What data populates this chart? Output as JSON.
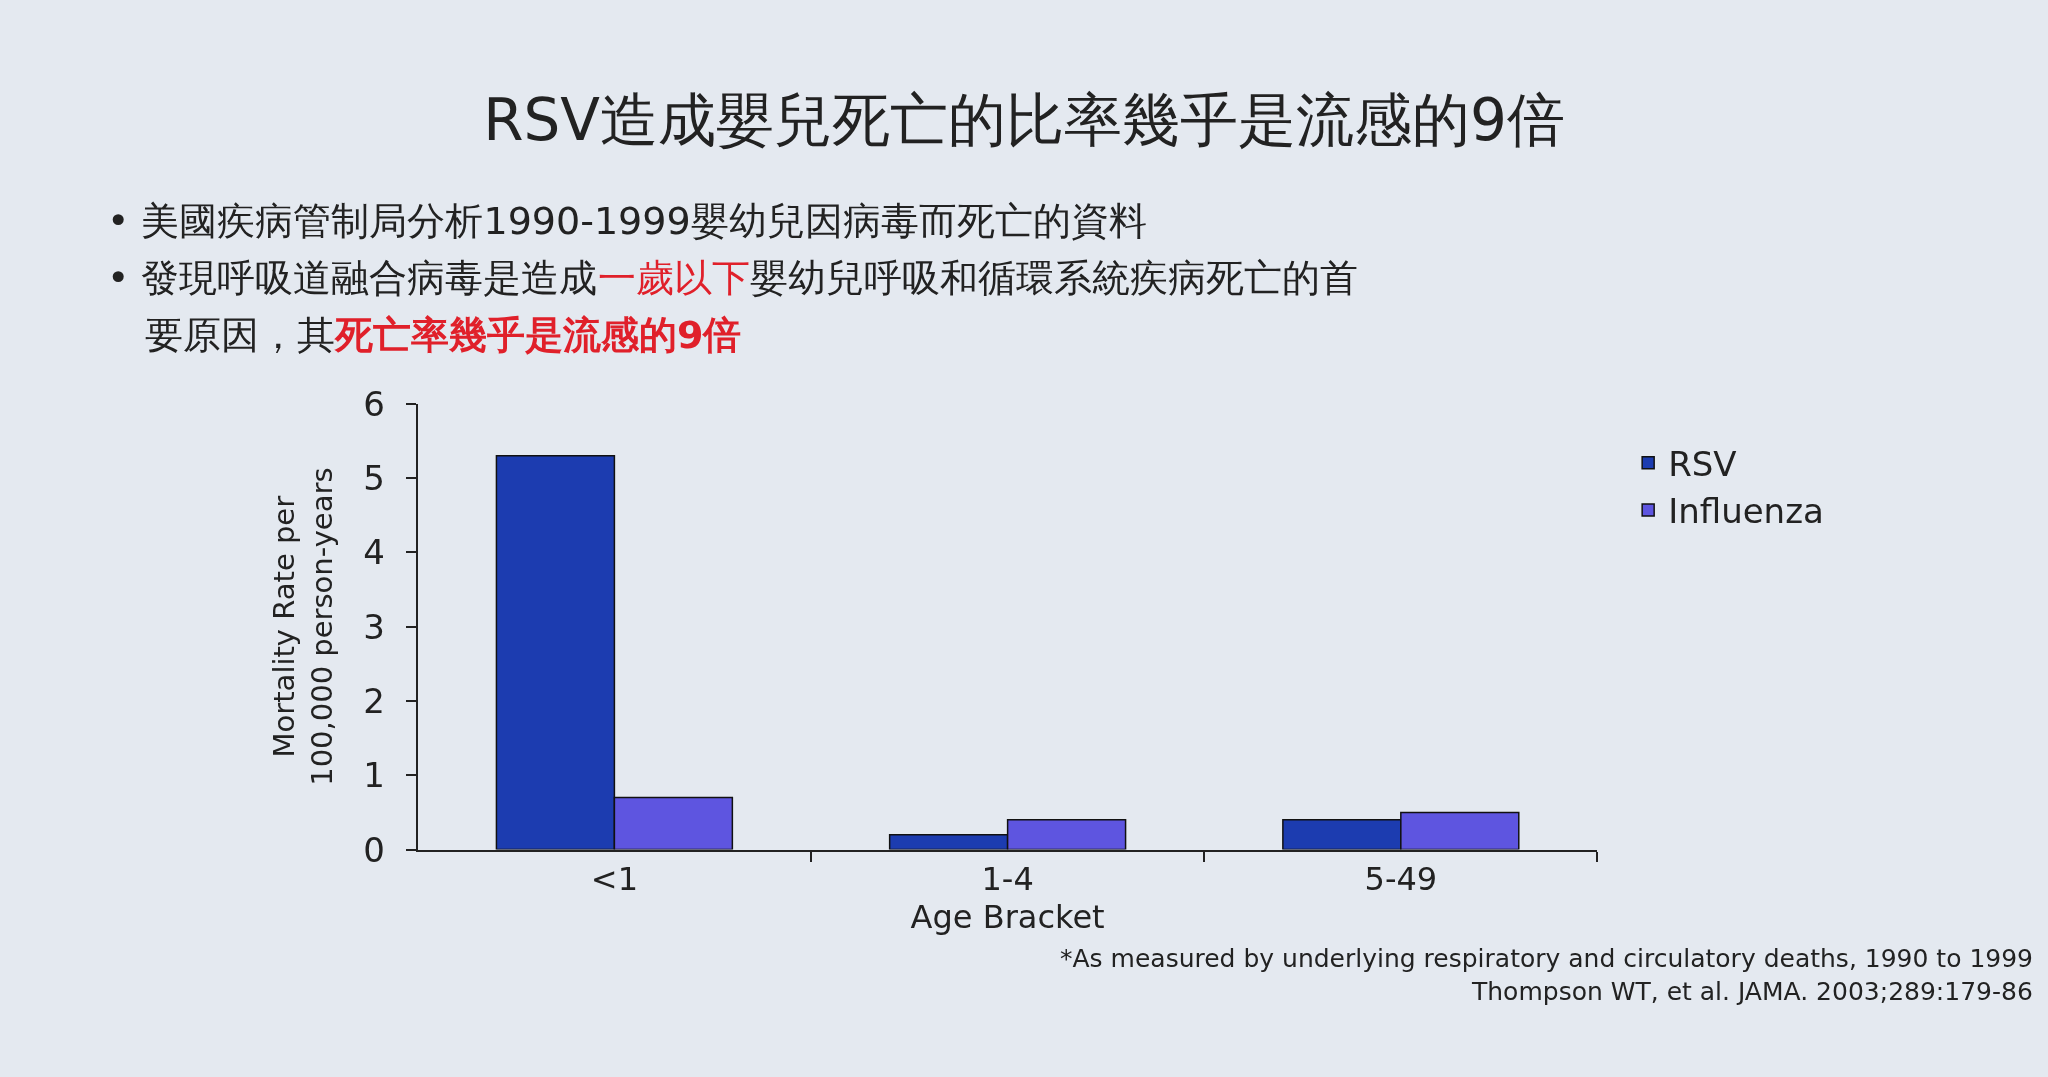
{
  "chart_data": {
    "type": "bar",
    "title": "RSV造成嬰兒死亡的比率幾乎是流感的9倍",
    "subtitle": "• 美國疾病管制局分析1990-1999嬰幼兒因病毒而死亡的資料",
    "annotations": [
      "• 發現呼吸道融合病毒是造成",
      "一歲以下",
      "嬰幼兒呼吸和循環系統疾病死亡的首",
      "要原因，其",
      "死亡率幾乎是流感的9倍",
      "*As measured by underlying respiratory and circulatory deaths, 1990 to 1999",
      "Thompson WT, et al. JAMA. 2003;289:179-86"
    ],
    "xlabel": "Age Bracket",
    "ylabel": "Mortality Rate per\n100,000 person-years",
    "categories": [
      "<1",
      "1-4",
      "5-49"
    ],
    "series": [
      {
        "name": "RSV",
        "color": "#1c3cb0",
        "values": [
          5.3,
          0.2,
          0.4
        ]
      },
      {
        "name": "Influenza",
        "color": "#5e55e0",
        "values": [
          0.7,
          0.4,
          0.5
        ]
      }
    ],
    "ylim": [
      0,
      6
    ],
    "yticks": [
      0,
      1,
      2,
      3,
      4,
      5,
      6
    ],
    "legend": "right"
  }
}
